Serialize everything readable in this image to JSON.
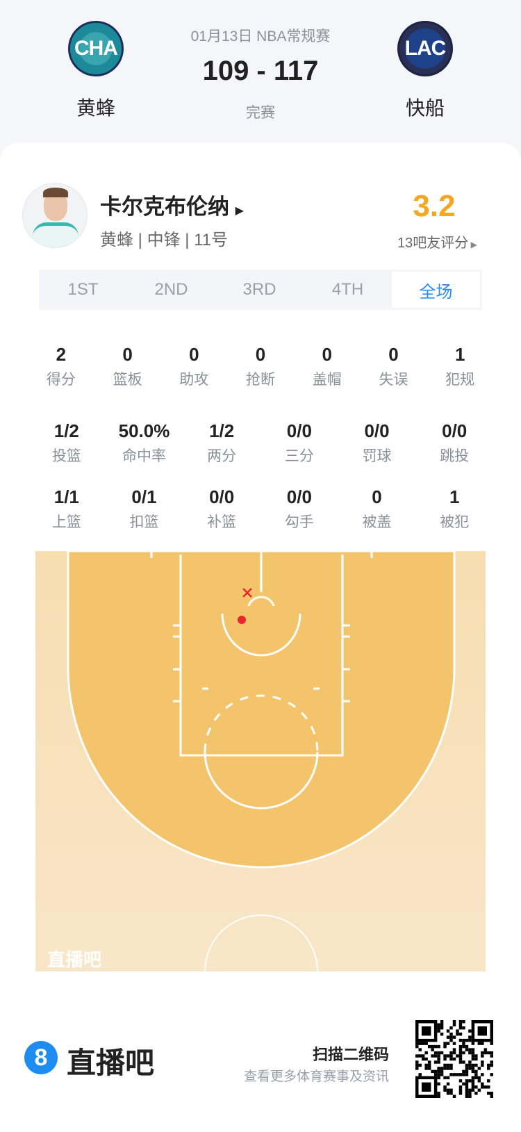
{
  "match": {
    "date_league": "01月13日 NBA常规赛",
    "score": "109 - 117",
    "status": "完赛",
    "home": {
      "abbr": "CHA",
      "name": "黄蜂",
      "color": "#1d8a99"
    },
    "away": {
      "abbr": "LAC",
      "name": "快船",
      "color": "#1d428a"
    }
  },
  "player": {
    "name": "卡尔克布伦纳",
    "info": "黄蜂 | 中锋 | 11号",
    "rating": "3.2",
    "rating_label": "13吧友评分",
    "rating_color": "#f5a623"
  },
  "tabs": [
    {
      "label": "1ST"
    },
    {
      "label": "2ND"
    },
    {
      "label": "3RD"
    },
    {
      "label": "4TH"
    },
    {
      "label": "全场",
      "active": true
    }
  ],
  "stats": [
    [
      {
        "v": "2",
        "l": "得分"
      },
      {
        "v": "0",
        "l": "篮板"
      },
      {
        "v": "0",
        "l": "助攻"
      },
      {
        "v": "0",
        "l": "抢断"
      },
      {
        "v": "0",
        "l": "盖帽"
      },
      {
        "v": "0",
        "l": "失误"
      },
      {
        "v": "1",
        "l": "犯规"
      }
    ],
    [
      {
        "v": "1/2",
        "l": "投篮"
      },
      {
        "v": "50.0%",
        "l": "命中率"
      },
      {
        "v": "1/2",
        "l": "两分"
      },
      {
        "v": "0/0",
        "l": "三分"
      },
      {
        "v": "0/0",
        "l": "罚球"
      },
      {
        "v": "0/0",
        "l": "跳投"
      }
    ],
    [
      {
        "v": "1/1",
        "l": "上篮"
      },
      {
        "v": "0/1",
        "l": "扣篮"
      },
      {
        "v": "0/0",
        "l": "补篮"
      },
      {
        "v": "0/0",
        "l": "勾手"
      },
      {
        "v": "0",
        "l": "被盖"
      },
      {
        "v": "1",
        "l": "被犯"
      }
    ]
  ],
  "court": {
    "watermark": "直播吧",
    "shots": [
      {
        "result": "missed"
      },
      {
        "result": "made"
      }
    ],
    "mark_color": "#e8262f"
  },
  "footer": {
    "brand": "直播吧",
    "qr_title": "扫描二维码",
    "qr_sub": "查看更多体育赛事及资讯",
    "brand_color": "#1e8cf0"
  }
}
